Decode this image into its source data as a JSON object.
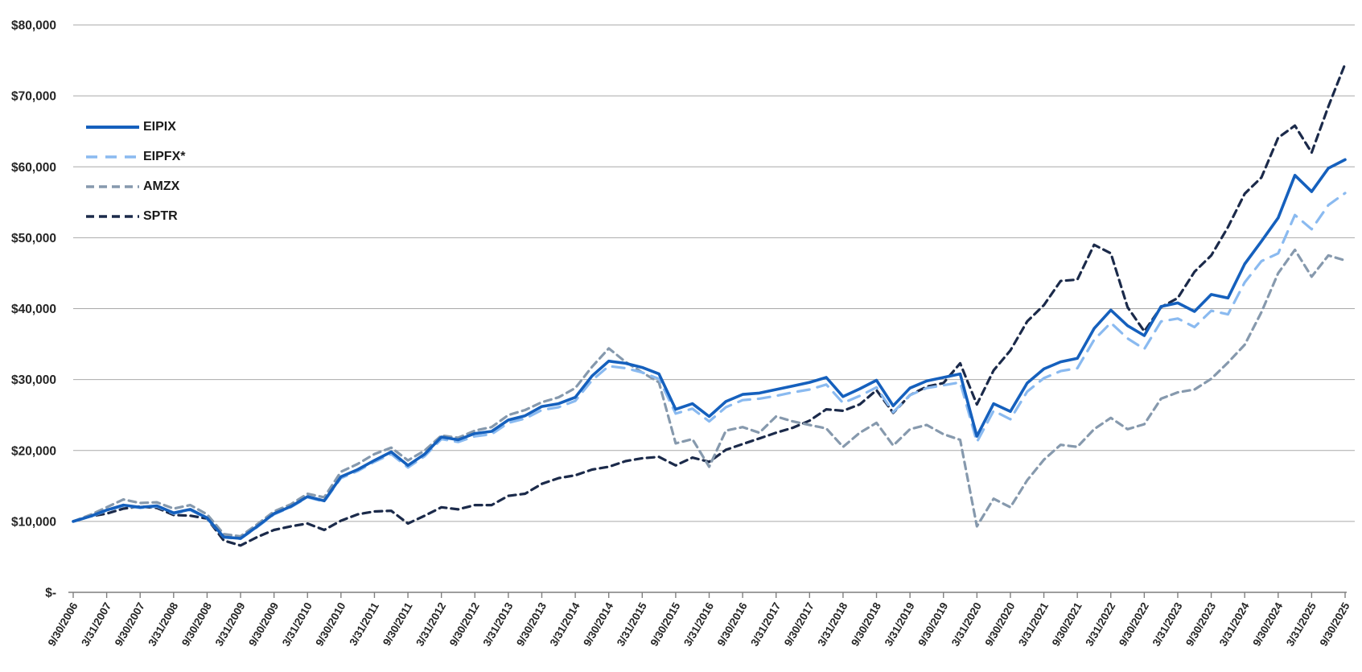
{
  "chart_data": {
    "type": "line",
    "title": "",
    "xlabel": "",
    "ylabel": "",
    "grid": "horizontal",
    "legend_position": "inside-top-left",
    "y_axis": {
      "min": 0,
      "max": 80000,
      "step": 10000,
      "tick_labels": [
        "$-",
        "$10,000",
        "$20,000",
        "$30,000",
        "$40,000",
        "$50,000",
        "$60,000",
        "$70,000",
        "$80,000"
      ]
    },
    "x_tick_labels": [
      "9/30/2006",
      "3/31/2007",
      "9/30/2007",
      "3/31/2008",
      "9/30/2008",
      "3/31/2009",
      "9/30/2009",
      "3/31/2010",
      "9/30/2010",
      "3/31/2011",
      "9/30/2011",
      "3/31/2012",
      "9/30/2012",
      "3/31/2013",
      "9/30/2013",
      "3/31/2014",
      "9/30/2014",
      "3/31/2015",
      "9/30/2015",
      "3/31/2016",
      "9/30/2016",
      "3/31/2017",
      "9/30/2017",
      "3/31/2018",
      "9/30/2018",
      "3/31/2019",
      "9/30/2019",
      "3/31/2020",
      "9/30/2020",
      "3/31/2021",
      "9/30/2021",
      "3/31/2022",
      "9/30/2022",
      "3/31/2023",
      "9/30/2023",
      "3/31/2024",
      "9/30/2024",
      "3/31/2025",
      "9/30/2025"
    ],
    "dates": [
      "9/30/2006",
      "12/31/2006",
      "3/31/2007",
      "6/30/2007",
      "9/30/2007",
      "12/31/2007",
      "3/31/2008",
      "6/30/2008",
      "9/30/2008",
      "12/31/2008",
      "3/31/2009",
      "6/30/2009",
      "9/30/2009",
      "12/31/2009",
      "3/31/2010",
      "6/30/2010",
      "9/30/2010",
      "12/31/2010",
      "3/31/2011",
      "6/30/2011",
      "9/30/2011",
      "12/31/2011",
      "3/31/2012",
      "6/30/2012",
      "9/30/2012",
      "12/31/2012",
      "3/31/2013",
      "6/30/2013",
      "9/30/2013",
      "12/31/2013",
      "3/31/2014",
      "6/30/2014",
      "9/30/2014",
      "12/31/2014",
      "3/31/2015",
      "6/30/2015",
      "9/30/2015",
      "12/31/2015",
      "3/31/2016",
      "6/30/2016",
      "9/30/2016",
      "12/31/2016",
      "3/31/2017",
      "6/30/2017",
      "9/30/2017",
      "12/31/2017",
      "3/31/2018",
      "6/30/2018",
      "9/30/2018",
      "12/31/2018",
      "3/31/2019",
      "6/30/2019",
      "9/30/2019",
      "12/31/2019",
      "3/31/2020",
      "6/30/2020",
      "9/30/2020",
      "12/31/2020",
      "3/31/2021",
      "6/30/2021",
      "9/30/2021",
      "12/31/2021",
      "3/31/2022",
      "6/30/2022",
      "9/30/2022",
      "12/31/2022",
      "3/31/2023",
      "6/30/2023",
      "9/30/2023",
      "12/31/2023",
      "3/31/2024",
      "6/30/2024",
      "9/30/2024",
      "12/31/2024",
      "3/31/2025",
      "6/30/2025",
      "9/30/2025"
    ],
    "series": [
      {
        "name": "EIPIX",
        "color": "#1560BD",
        "style": "solid",
        "values": [
          10000,
          10700,
          11600,
          12300,
          12000,
          12200,
          11200,
          11700,
          10500,
          7800,
          7600,
          9300,
          11100,
          12100,
          13500,
          12900,
          16300,
          17300,
          18600,
          19800,
          17900,
          19500,
          21900,
          21500,
          22400,
          22700,
          24300,
          24900,
          26200,
          26600,
          27500,
          30500,
          32600,
          32300,
          31700,
          30800,
          25800,
          26600,
          24800,
          26900,
          27900,
          28100,
          28600,
          29100,
          29600,
          30300,
          27600,
          28700,
          29900,
          26300,
          28800,
          29800,
          30300,
          30800,
          22000,
          26600,
          25500,
          29500,
          31500,
          32500,
          33000,
          37200,
          39800,
          37600,
          36200,
          40300,
          40800,
          39600,
          42000,
          41500,
          46300,
          49500,
          52800,
          58800,
          56500,
          59800,
          61000
        ]
      },
      {
        "name": "EIPFX*",
        "color": "#8ABAF0",
        "style": "dashed",
        "values": [
          10000,
          10650,
          11500,
          12200,
          11900,
          12100,
          11100,
          11600,
          10400,
          7750,
          7550,
          9200,
          11000,
          12000,
          13400,
          12800,
          16100,
          17100,
          18400,
          19500,
          17600,
          19200,
          21600,
          21200,
          22000,
          22300,
          23900,
          24500,
          25700,
          26100,
          27000,
          29900,
          31900,
          31600,
          31000,
          30100,
          25200,
          25900,
          24100,
          26100,
          27100,
          27300,
          27700,
          28200,
          28600,
          29300,
          26700,
          27700,
          28900,
          25400,
          27800,
          28800,
          29200,
          29600,
          21200,
          25600,
          24400,
          28300,
          30200,
          31200,
          31600,
          35600,
          38000,
          35800,
          34300,
          38200,
          38600,
          37400,
          39700,
          39200,
          43700,
          46700,
          47800,
          53200,
          51200,
          54600,
          56300
        ]
      },
      {
        "name": "AMZX",
        "color": "#8699AD",
        "style": "dashed",
        "values": [
          10000,
          10900,
          12000,
          13100,
          12600,
          12700,
          11800,
          12300,
          11000,
          8200,
          7900,
          9600,
          11400,
          12400,
          13900,
          13400,
          17000,
          18100,
          19500,
          20400,
          18600,
          20000,
          22100,
          21800,
          22800,
          23300,
          25000,
          25700,
          26800,
          27500,
          28800,
          31800,
          34400,
          32500,
          31000,
          29600,
          21000,
          21600,
          17700,
          22800,
          23300,
          22500,
          24800,
          24100,
          23600,
          23100,
          20500,
          22500,
          23900,
          20700,
          23000,
          23600,
          22300,
          21500,
          9300,
          13200,
          12000,
          15800,
          18700,
          20800,
          20500,
          23000,
          24600,
          23000,
          23700,
          27300,
          28200,
          28600,
          30100,
          32400,
          34900,
          39500,
          45000,
          48300,
          44500,
          47500,
          46800
        ]
      },
      {
        "name": "SPTR",
        "color": "#1B2A4A",
        "style": "dashed",
        "values": [
          10000,
          10700,
          11100,
          11800,
          12100,
          11900,
          10900,
          10800,
          10400,
          7300,
          6600,
          7800,
          8800,
          9300,
          9700,
          8800,
          10100,
          11000,
          11400,
          11500,
          9700,
          10800,
          12000,
          11700,
          12300,
          12300,
          13600,
          13900,
          15300,
          16100,
          16500,
          17300,
          17700,
          18500,
          18900,
          19100,
          17900,
          19000,
          18400,
          20100,
          20900,
          21700,
          22500,
          23200,
          24200,
          25800,
          25600,
          26500,
          28500,
          25300,
          27800,
          29000,
          29500,
          32300,
          26500,
          31300,
          34100,
          38200,
          40500,
          43900,
          44100,
          49000,
          47800,
          40200,
          36800,
          40200,
          41500,
          45200,
          47500,
          51500,
          56200,
          58500,
          64100,
          65800,
          62000,
          68500,
          74500
        ]
      }
    ]
  }
}
